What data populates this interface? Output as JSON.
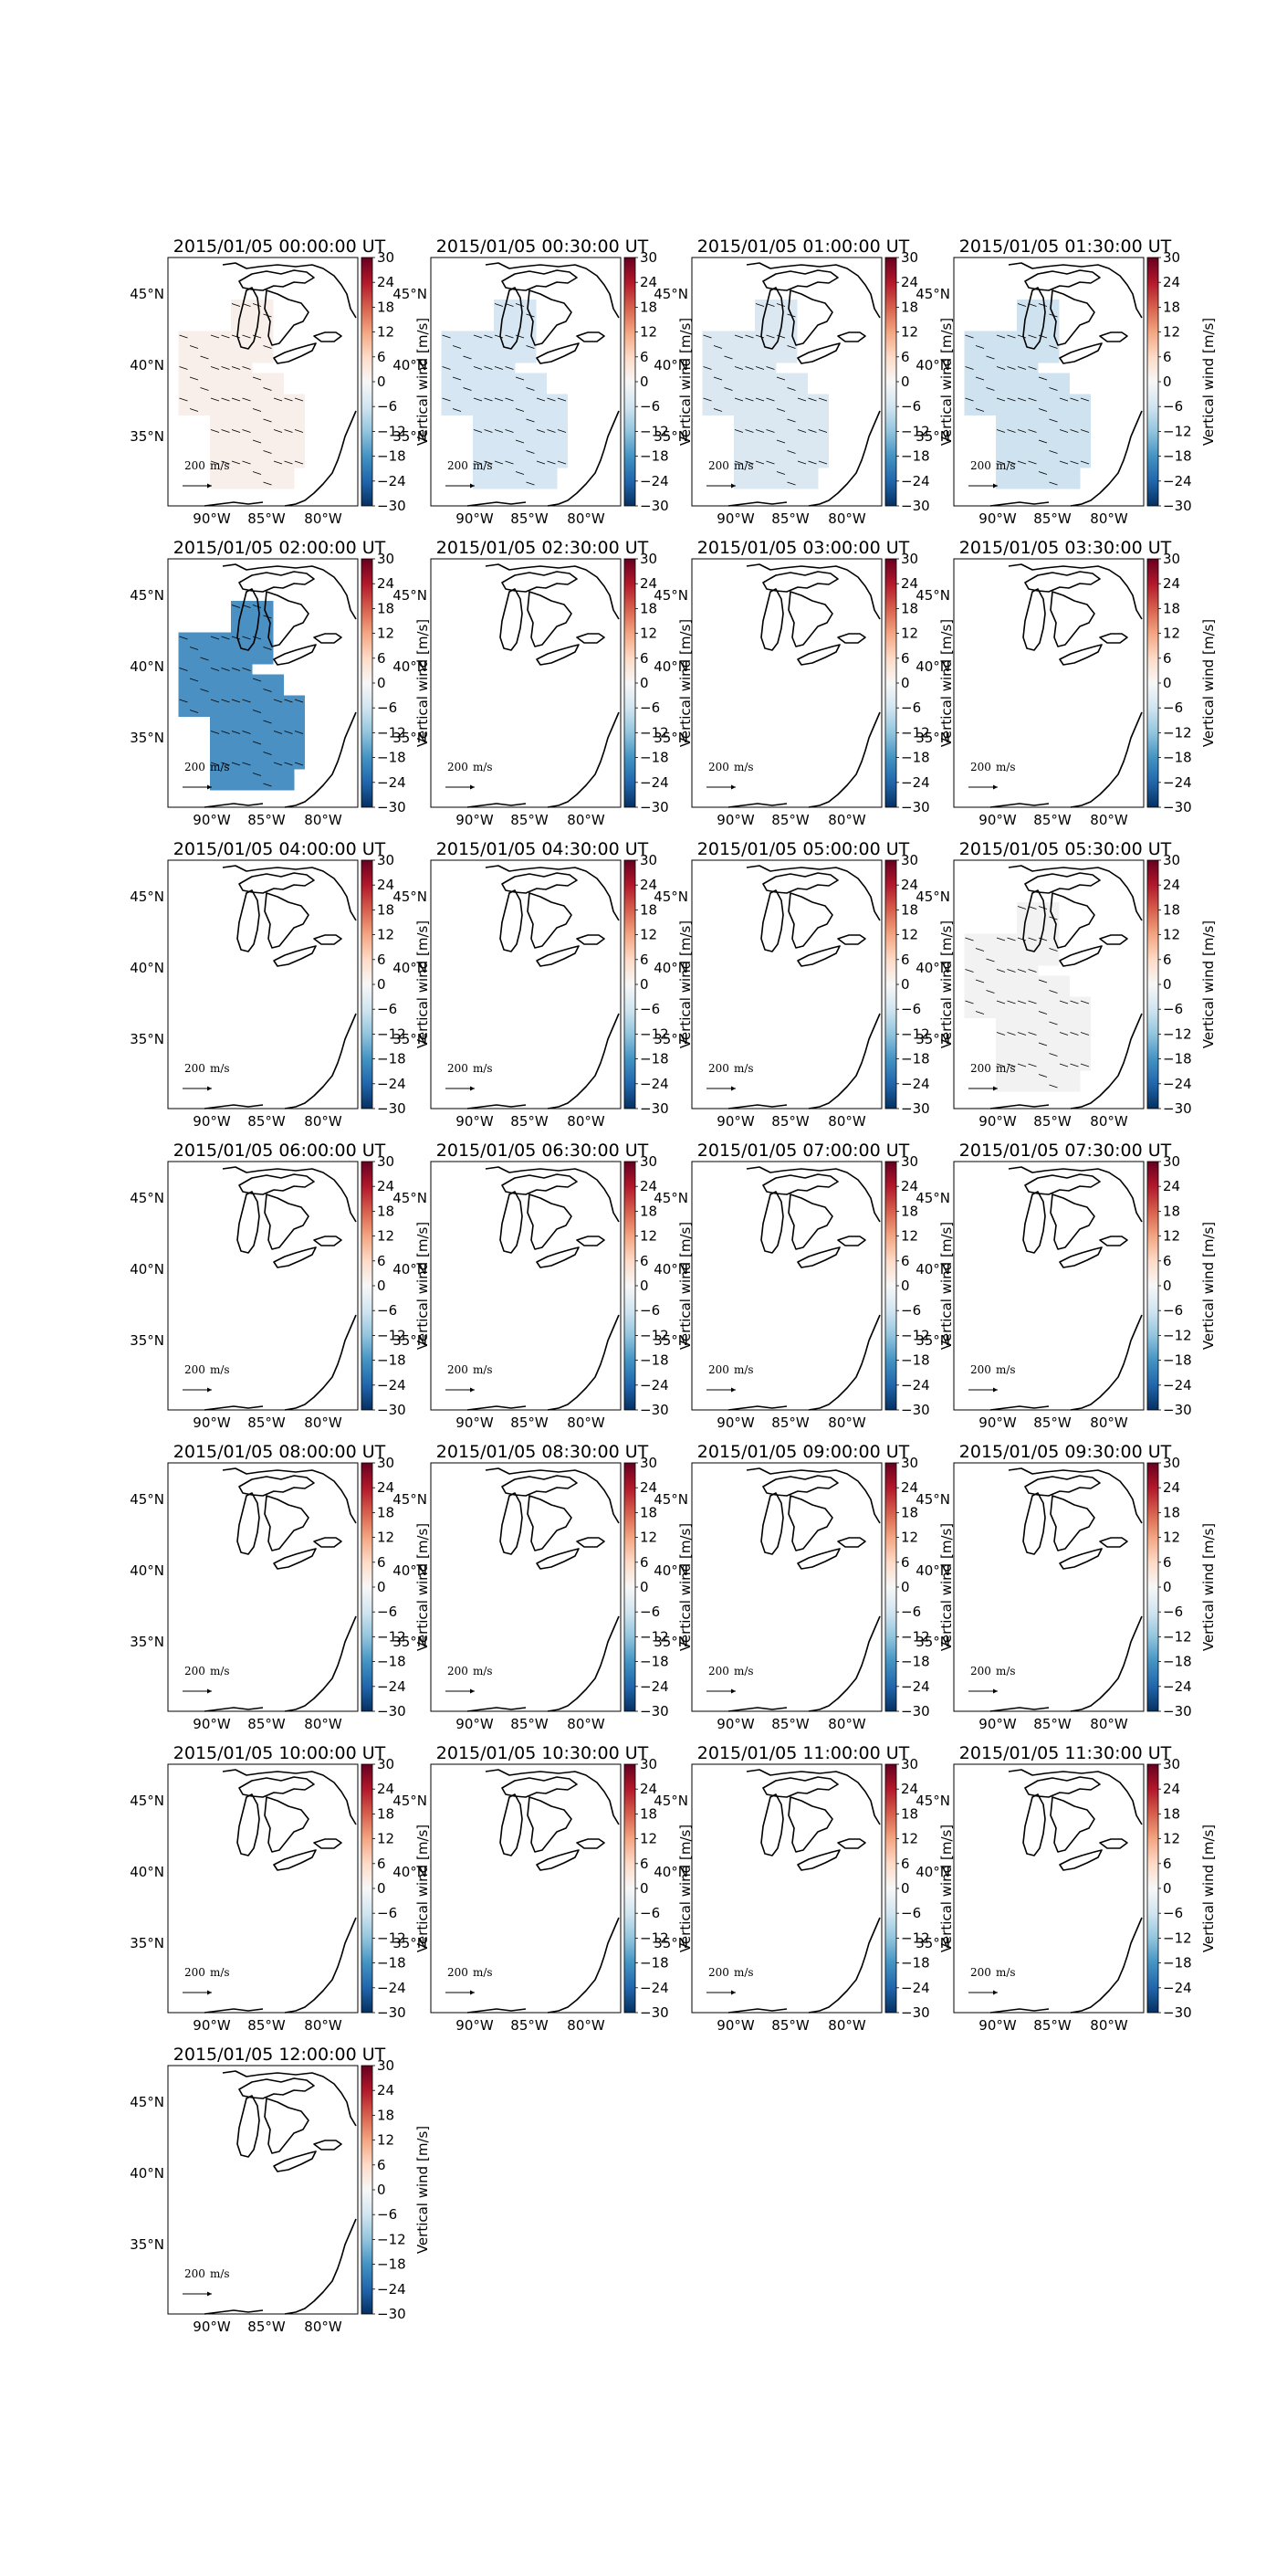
{
  "figure": {
    "panel_count": 25,
    "columns": 4
  },
  "chart_data": {
    "type": "heatmap",
    "description_kind": "map panels of vertical wind over the Great Lakes region",
    "colorbar": {
      "label": "Vertical wind [m/s]",
      "min": -30,
      "max": 30,
      "ticks": [
        "30",
        "24",
        "18",
        "12",
        "6",
        "0",
        "−6",
        "−12",
        "−18",
        "−24",
        "−30"
      ],
      "colormap": [
        "#053061",
        "#2166ac",
        "#4393c3",
        "#92c5de",
        "#d1e5f0",
        "#f7f7f7",
        "#fddbc7",
        "#f4a582",
        "#d6604d",
        "#b2182b",
        "#67001f"
      ]
    },
    "x_ticks": [
      "90°W",
      "85°W",
      "80°W"
    ],
    "y_ticks": [
      "45°N",
      "40°N",
      "35°N"
    ],
    "scale_label": "200",
    "scale_unit": "m/s",
    "panels": [
      {
        "title": "2015/01/05 00:00:00 UT",
        "fill": "#f9efea",
        "arrows": true
      },
      {
        "title": "2015/01/05 00:30:00 UT",
        "fill": "#d6e6f2",
        "arrows": true
      },
      {
        "title": "2015/01/05 01:00:00 UT",
        "fill": "#dbe8f2",
        "arrows": true
      },
      {
        "title": "2015/01/05 01:30:00 UT",
        "fill": "#cfe2ef",
        "arrows": true
      },
      {
        "title": "2015/01/05 02:00:00 UT",
        "fill": "#4a90c2",
        "arrows": true
      },
      {
        "title": "2015/01/05 02:30:00 UT",
        "fill": null,
        "arrows": false
      },
      {
        "title": "2015/01/05 03:00:00 UT",
        "fill": null,
        "arrows": false
      },
      {
        "title": "2015/01/05 03:30:00 UT",
        "fill": null,
        "arrows": false
      },
      {
        "title": "2015/01/05 04:00:00 UT",
        "fill": null,
        "arrows": false
      },
      {
        "title": "2015/01/05 04:30:00 UT",
        "fill": null,
        "arrows": false
      },
      {
        "title": "2015/01/05 05:00:00 UT",
        "fill": null,
        "arrows": false
      },
      {
        "title": "2015/01/05 05:30:00 UT",
        "fill": "#f2f2f2",
        "arrows": true
      },
      {
        "title": "2015/01/05 06:00:00 UT",
        "fill": null,
        "arrows": false
      },
      {
        "title": "2015/01/05 06:30:00 UT",
        "fill": null,
        "arrows": false
      },
      {
        "title": "2015/01/05 07:00:00 UT",
        "fill": null,
        "arrows": false
      },
      {
        "title": "2015/01/05 07:30:00 UT",
        "fill": null,
        "arrows": false
      },
      {
        "title": "2015/01/05 08:00:00 UT",
        "fill": null,
        "arrows": false
      },
      {
        "title": "2015/01/05 08:30:00 UT",
        "fill": null,
        "arrows": false
      },
      {
        "title": "2015/01/05 09:00:00 UT",
        "fill": null,
        "arrows": false
      },
      {
        "title": "2015/01/05 09:30:00 UT",
        "fill": null,
        "arrows": false
      },
      {
        "title": "2015/01/05 10:00:00 UT",
        "fill": null,
        "arrows": false
      },
      {
        "title": "2015/01/05 10:30:00 UT",
        "fill": null,
        "arrows": false
      },
      {
        "title": "2015/01/05 11:00:00 UT",
        "fill": null,
        "arrows": false
      },
      {
        "title": "2015/01/05 11:30:00 UT",
        "fill": null,
        "arrows": false
      },
      {
        "title": "2015/01/05 12:00:00 UT",
        "fill": null,
        "arrows": false
      }
    ]
  }
}
